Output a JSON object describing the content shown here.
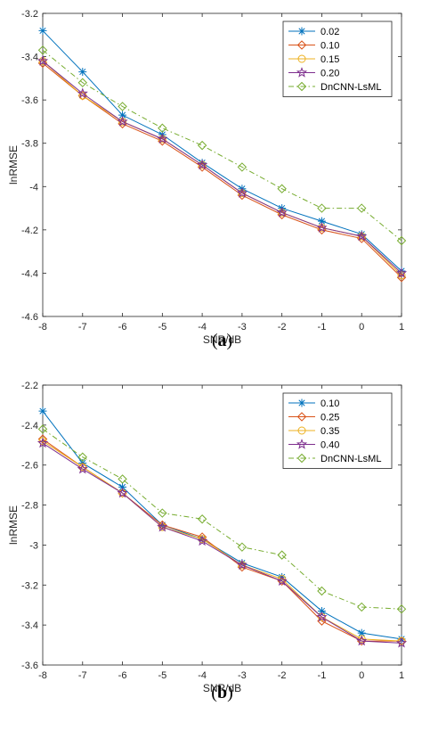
{
  "chart_data": [
    {
      "type": "line",
      "panel_label": "a",
      "xlabel": "SNR/dB",
      "ylabel": "lnRMSE",
      "xlim": [
        -8,
        1
      ],
      "ylim": [
        -4.6,
        -3.2
      ],
      "xticks": [
        -8,
        -7,
        -6,
        -5,
        -4,
        -3,
        -2,
        -1,
        0,
        1
      ],
      "yticks": [
        -3.2,
        -3.4,
        -3.6,
        -3.8,
        -4,
        -4.2,
        -4.4,
        -4.6
      ],
      "ytick_labels": [
        "-3.2",
        "-3.4",
        "-3.6",
        "-3.8",
        "-4",
        "-4.2",
        "-4.4",
        "-4.6"
      ],
      "legend_location": "top-right",
      "grid": false,
      "x": [
        -8,
        -7,
        -6,
        -5,
        -4,
        -3,
        -2,
        -1,
        0,
        1
      ],
      "series": [
        {
          "name": "0.02",
          "color": "#0072BD",
          "marker": "asterisk",
          "dash": "solid",
          "values": [
            -3.28,
            -3.47,
            -3.67,
            -3.76,
            -3.89,
            -4.01,
            -4.1,
            -4.16,
            -4.22,
            -4.39
          ]
        },
        {
          "name": "0.10",
          "color": "#D95319",
          "marker": "diamond",
          "dash": "solid",
          "values": [
            -3.43,
            -3.58,
            -3.71,
            -3.79,
            -3.91,
            -4.04,
            -4.13,
            -4.2,
            -4.24,
            -4.42
          ]
        },
        {
          "name": "0.15",
          "color": "#EDB120",
          "marker": "circle",
          "dash": "solid",
          "values": [
            -3.42,
            -3.58,
            -3.7,
            -3.78,
            -3.9,
            -4.03,
            -4.12,
            -4.19,
            -4.23,
            -4.41
          ]
        },
        {
          "name": "0.20",
          "color": "#7E2F8E",
          "marker": "star",
          "dash": "solid",
          "values": [
            -3.42,
            -3.57,
            -3.7,
            -3.78,
            -3.9,
            -4.03,
            -4.12,
            -4.19,
            -4.23,
            -4.4
          ]
        },
        {
          "name": "DnCNN-LsML",
          "color": "#77AC30",
          "marker": "diamond",
          "dash": "dashdot",
          "values": [
            -3.37,
            -3.52,
            -3.63,
            -3.73,
            -3.81,
            -3.91,
            -4.01,
            -4.1,
            -4.1,
            -4.25
          ]
        }
      ]
    },
    {
      "type": "line",
      "panel_label": "b",
      "xlabel": "SNR/dB",
      "ylabel": "lnRMSE",
      "xlim": [
        -8,
        1
      ],
      "ylim": [
        -3.6,
        -2.2
      ],
      "xticks": [
        -8,
        -7,
        -6,
        -5,
        -4,
        -3,
        -2,
        -1,
        0,
        1
      ],
      "yticks": [
        -2.2,
        -2.4,
        -2.6,
        -2.8,
        -3,
        -3.2,
        -3.4,
        -3.6
      ],
      "ytick_labels": [
        "-2.2",
        "-2.4",
        "-2.6",
        "-2.8",
        "-3",
        "-3.2",
        "-3.4",
        "-3.6"
      ],
      "legend_location": "top-right",
      "grid": false,
      "x": [
        -8,
        -7,
        -6,
        -5,
        -4,
        -3,
        -2,
        -1,
        0,
        1
      ],
      "series": [
        {
          "name": "0.10",
          "color": "#0072BD",
          "marker": "asterisk",
          "dash": "solid",
          "values": [
            -2.33,
            -2.59,
            -2.71,
            -2.9,
            -2.97,
            -3.09,
            -3.16,
            -3.33,
            -3.44,
            -3.47
          ]
        },
        {
          "name": "0.25",
          "color": "#D95319",
          "marker": "diamond",
          "dash": "solid",
          "values": [
            -2.47,
            -2.61,
            -2.74,
            -2.9,
            -2.96,
            -3.11,
            -3.18,
            -3.38,
            -3.48,
            -3.48
          ]
        },
        {
          "name": "0.35",
          "color": "#EDB120",
          "marker": "circle",
          "dash": "solid",
          "values": [
            -2.48,
            -2.61,
            -2.74,
            -2.91,
            -2.97,
            -3.1,
            -3.17,
            -3.36,
            -3.47,
            -3.48
          ]
        },
        {
          "name": "0.40",
          "color": "#7E2F8E",
          "marker": "star",
          "dash": "solid",
          "values": [
            -2.49,
            -2.62,
            -2.74,
            -2.91,
            -2.98,
            -3.1,
            -3.18,
            -3.36,
            -3.48,
            -3.49
          ]
        },
        {
          "name": "DnCNN-LsML",
          "color": "#77AC30",
          "marker": "diamond",
          "dash": "dashdot",
          "values": [
            -2.42,
            -2.56,
            -2.67,
            -2.84,
            -2.87,
            -3.01,
            -3.05,
            -3.23,
            -3.31,
            -3.32
          ]
        }
      ]
    }
  ]
}
